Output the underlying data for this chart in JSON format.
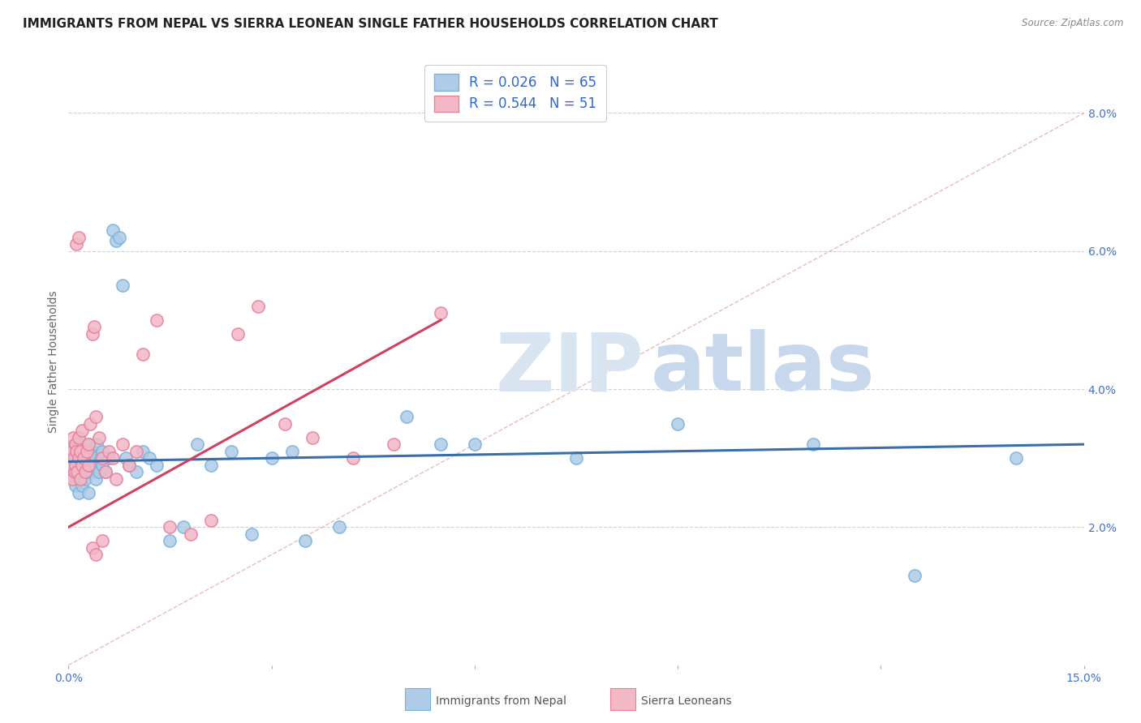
{
  "title": "IMMIGRANTS FROM NEPAL VS SIERRA LEONEAN SINGLE FATHER HOUSEHOLDS CORRELATION CHART",
  "source": "Source: ZipAtlas.com",
  "ylabel": "Single Father Households",
  "xlim": [
    0.0,
    15.0
  ],
  "ylim": [
    0.0,
    8.8
  ],
  "yticks_right": [
    2.0,
    4.0,
    6.0,
    8.0
  ],
  "ytick_labels_right": [
    "2.0%",
    "4.0%",
    "6.0%",
    "8.0%"
  ],
  "nepal_color": "#7ab3d9",
  "nepal_color_light": "#aecce8",
  "sierra_color": "#e8809a",
  "sierra_color_light": "#f2b8c6",
  "nepal_R": 0.026,
  "nepal_N": 65,
  "sierra_R": 0.544,
  "sierra_N": 51,
  "legend_nepal_label": "Immigrants from Nepal",
  "legend_sierra_label": "Sierra Leoneans",
  "background_color": "#ffffff",
  "grid_color": "#d0d0d0",
  "diag_color": "#e0b0b8",
  "title_fontsize": 11,
  "axis_fontsize": 10,
  "tick_fontsize": 10,
  "nepal_scatter_x": [
    0.05,
    0.07,
    0.08,
    0.09,
    0.1,
    0.1,
    0.1,
    0.12,
    0.13,
    0.15,
    0.15,
    0.15,
    0.17,
    0.18,
    0.2,
    0.2,
    0.2,
    0.22,
    0.25,
    0.25,
    0.27,
    0.3,
    0.3,
    0.3,
    0.32,
    0.35,
    0.35,
    0.38,
    0.4,
    0.4,
    0.42,
    0.45,
    0.48,
    0.5,
    0.5,
    0.55,
    0.6,
    0.65,
    0.7,
    0.75,
    0.8,
    0.85,
    0.9,
    1.0,
    1.1,
    1.2,
    1.3,
    1.5,
    1.7,
    1.9,
    2.1,
    2.4,
    2.7,
    3.0,
    3.5,
    4.0,
    5.0,
    6.0,
    7.5,
    9.0,
    11.0,
    12.5,
    14.0,
    3.3,
    5.5
  ],
  "nepal_scatter_y": [
    2.8,
    3.0,
    2.7,
    3.2,
    2.9,
    3.1,
    2.6,
    3.0,
    2.8,
    3.2,
    2.5,
    3.3,
    2.9,
    3.1,
    2.8,
    3.0,
    2.6,
    2.9,
    2.7,
    3.1,
    2.8,
    3.0,
    2.5,
    3.2,
    2.9,
    2.8,
    3.1,
    3.0,
    2.7,
    2.9,
    3.2,
    2.8,
    3.0,
    2.9,
    3.1,
    2.8,
    3.0,
    6.3,
    6.15,
    6.2,
    5.5,
    3.0,
    2.9,
    2.8,
    3.1,
    3.0,
    2.9,
    1.8,
    2.0,
    3.2,
    2.9,
    3.1,
    1.9,
    3.0,
    1.8,
    2.0,
    3.6,
    3.2,
    3.0,
    3.5,
    3.2,
    1.3,
    3.0,
    3.1,
    3.2
  ],
  "sierra_scatter_x": [
    0.03,
    0.05,
    0.06,
    0.07,
    0.08,
    0.09,
    0.1,
    0.1,
    0.12,
    0.13,
    0.15,
    0.15,
    0.17,
    0.18,
    0.2,
    0.2,
    0.22,
    0.25,
    0.27,
    0.3,
    0.3,
    0.32,
    0.35,
    0.38,
    0.4,
    0.45,
    0.5,
    0.55,
    0.6,
    0.65,
    0.7,
    0.8,
    0.9,
    1.0,
    1.1,
    1.3,
    1.5,
    1.8,
    2.1,
    2.5,
    2.8,
    3.2,
    3.6,
    4.2,
    4.8,
    5.5,
    0.12,
    0.15,
    0.35,
    0.4,
    0.5
  ],
  "sierra_scatter_y": [
    2.9,
    3.1,
    2.7,
    3.3,
    3.0,
    2.8,
    3.2,
    2.9,
    3.1,
    2.8,
    3.0,
    3.3,
    2.7,
    3.1,
    2.9,
    3.4,
    3.0,
    2.8,
    3.1,
    2.9,
    3.2,
    3.5,
    4.8,
    4.9,
    3.6,
    3.3,
    3.0,
    2.8,
    3.1,
    3.0,
    2.7,
    3.2,
    2.9,
    3.1,
    4.5,
    5.0,
    2.0,
    1.9,
    2.1,
    4.8,
    5.2,
    3.5,
    3.3,
    3.0,
    3.2,
    5.1,
    6.1,
    6.2,
    1.7,
    1.6,
    1.8
  ]
}
